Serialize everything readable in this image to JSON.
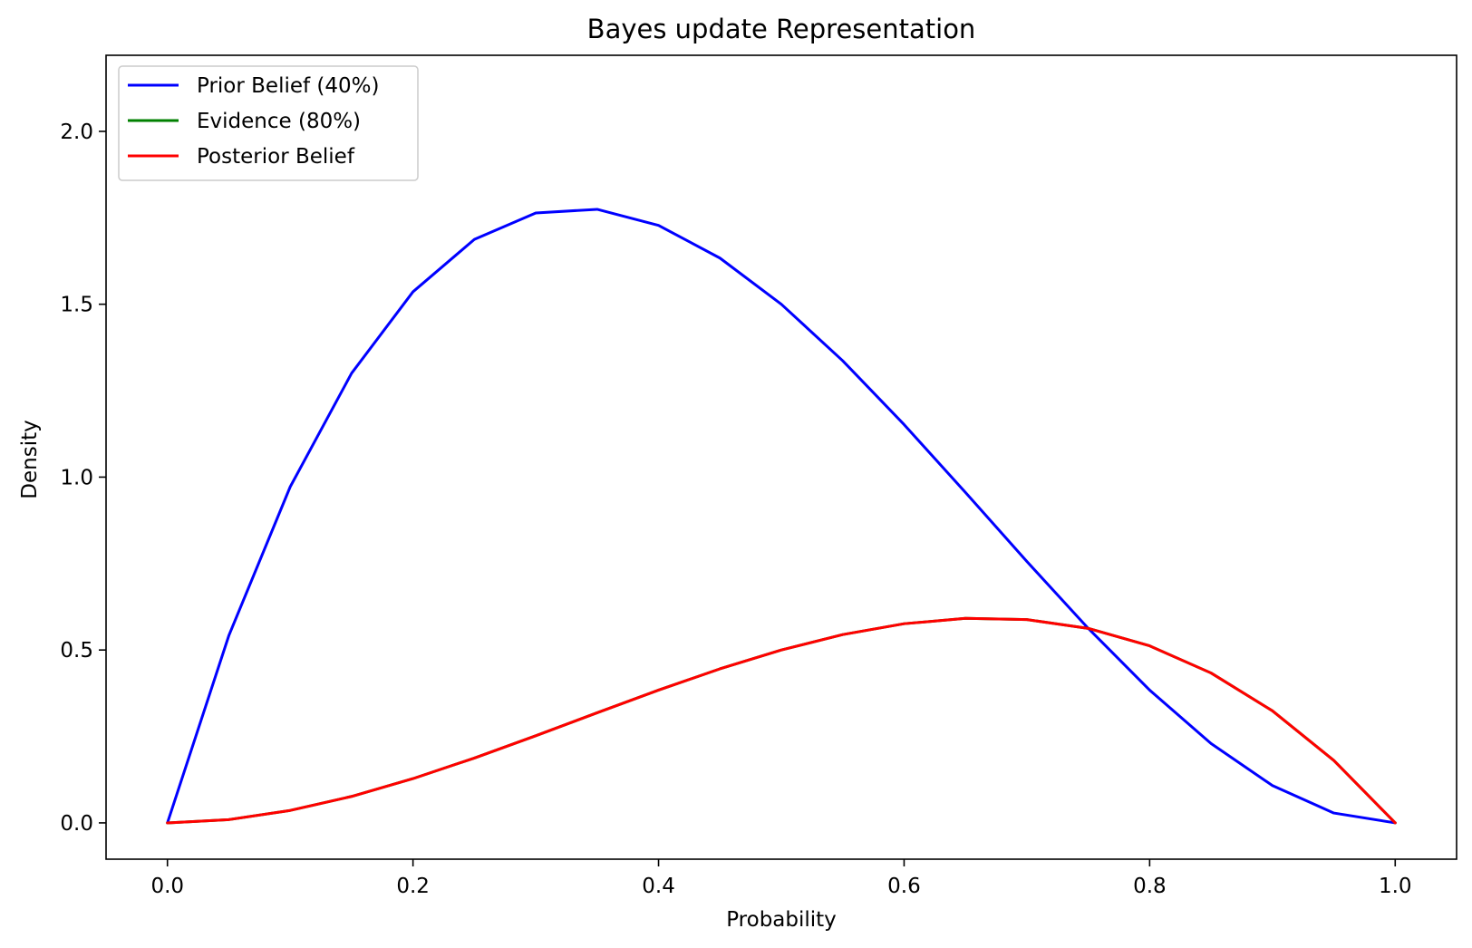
{
  "chart_data": {
    "type": "line",
    "title": "Bayes update Representation",
    "xlabel": "Probability",
    "ylabel": "Density",
    "xlim": [
      -0.05,
      1.05
    ],
    "ylim": [
      -0.105,
      2.22
    ],
    "xticks": [
      0.0,
      0.2,
      0.4,
      0.6,
      0.8,
      1.0
    ],
    "xtick_labels": [
      "0.0",
      "0.2",
      "0.4",
      "0.6",
      "0.8",
      "1.0"
    ],
    "yticks": [
      0.0,
      0.5,
      1.0,
      1.5,
      2.0
    ],
    "ytick_labels": [
      "0.0",
      "0.5",
      "1.0",
      "1.5",
      "2.0"
    ],
    "grid": false,
    "legend_position": "upper-left",
    "x": [
      0.0,
      0.05,
      0.1,
      0.15,
      0.2,
      0.25,
      0.3,
      0.35,
      0.4,
      0.45,
      0.5,
      0.55,
      0.6,
      0.65,
      0.7,
      0.75,
      0.8,
      0.85,
      0.9,
      0.95,
      1.0
    ],
    "series": [
      {
        "name": "Prior Belief (40%)",
        "color": "#0000ff",
        "values": [
          0.0,
          0.5415,
          0.972,
          1.3005,
          1.536,
          1.6875,
          1.764,
          1.7745,
          1.728,
          1.6335,
          1.5,
          1.3365,
          1.152,
          0.9555,
          0.756,
          0.5625,
          0.384,
          0.2295,
          0.108,
          0.0285,
          0.0
        ]
      },
      {
        "name": "Evidence (80%)",
        "color": "#008000",
        "values": [
          0.0,
          0.0095,
          0.036,
          0.0765,
          0.128,
          0.1875,
          0.252,
          0.3185,
          0.384,
          0.4455,
          0.5,
          0.5445,
          0.576,
          0.5915,
          0.588,
          0.5625,
          0.512,
          0.4335,
          0.324,
          0.1805,
          0.0
        ]
      },
      {
        "name": "Posterior Belief",
        "color": "#ff0000",
        "values": [
          0.0,
          0.0095,
          0.036,
          0.0765,
          0.128,
          0.1875,
          0.252,
          0.3185,
          0.384,
          0.4455,
          0.5,
          0.5445,
          0.576,
          0.5915,
          0.588,
          0.5625,
          0.512,
          0.4335,
          0.324,
          0.1805,
          0.0
        ]
      }
    ]
  }
}
